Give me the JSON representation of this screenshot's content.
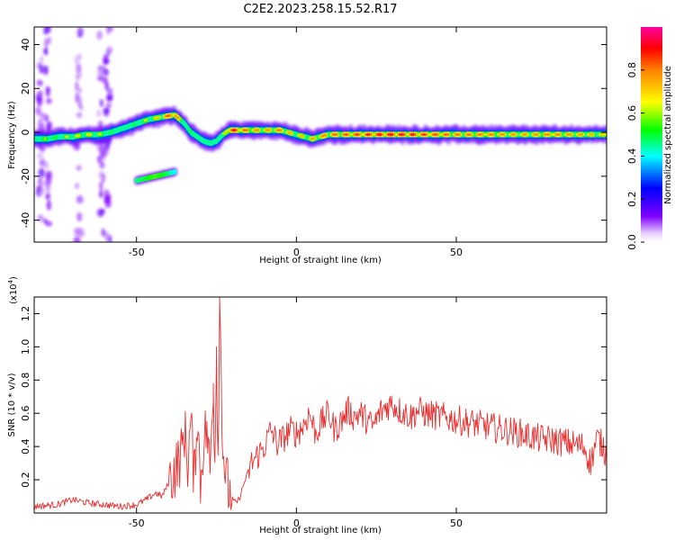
{
  "figure_title": "C2E2.2023.258.15.52.R17",
  "colors": {
    "snr_line": "#e83030",
    "axis": "#000000"
  },
  "chart_data": [
    {
      "type": "heatmap",
      "title": "C2E2.2023.258.15.52.R17",
      "xlabel": "Height of straight line (km)",
      "ylabel": "Frequency (Hz)",
      "xlim": [
        -82,
        97
      ],
      "ylim": [
        -50,
        48
      ],
      "xticks": [
        -50,
        0,
        50
      ],
      "yticks": [
        -40,
        -20,
        0,
        20,
        40
      ],
      "grid": false,
      "colormap": "rainbow",
      "colorbar": {
        "label": "Normalized spectral amplitude",
        "range": [
          0,
          1
        ],
        "ticks": [
          "0.0",
          "0.2",
          "0.4",
          "0.6",
          "0.8"
        ]
      },
      "ridge": {
        "x": [
          -82,
          -78,
          -74,
          -70,
          -66,
          -62,
          -58,
          -54,
          -50,
          -46,
          -42,
          -38,
          -35,
          -33,
          -31,
          -29,
          -27,
          -25,
          -23,
          -21,
          -18,
          -15,
          -10,
          -5,
          0,
          5,
          10,
          20,
          30,
          40,
          50,
          60,
          70,
          80,
          90,
          97
        ],
        "y": [
          -3,
          -3,
          -2,
          -2,
          -1,
          -1,
          0,
          2,
          4,
          6,
          7,
          8,
          4,
          0,
          -2,
          -4,
          -5,
          -4,
          -1,
          1,
          1,
          1,
          1,
          1,
          -1,
          -3,
          -1,
          -1,
          -1,
          -1,
          -1,
          -1,
          -1,
          -1,
          -1,
          -1
        ],
        "amplitude": [
          0.5,
          0.6,
          0.55,
          0.6,
          0.65,
          0.6,
          0.55,
          0.5,
          0.55,
          0.6,
          0.7,
          0.85,
          0.5,
          0.55,
          0.5,
          0.45,
          0.5,
          0.45,
          0.5,
          0.85,
          0.8,
          0.75,
          0.7,
          0.75,
          0.65,
          0.7,
          0.75,
          0.8,
          0.85,
          0.8,
          0.75,
          0.75,
          0.7,
          0.75,
          0.7,
          0.65
        ]
      },
      "secondary_branch": {
        "x": [
          -50,
          -47,
          -44,
          -41,
          -38
        ],
        "y": [
          -22,
          -21,
          -20,
          -19,
          -18
        ],
        "amplitude": [
          0.45,
          0.5,
          0.55,
          0.5,
          0.4
        ]
      }
    },
    {
      "type": "line",
      "xlabel": "Height of straight line (km)",
      "ylabel": "SNR (10 * v/v)",
      "y_multiplier": "(x10^4)",
      "xlim": [
        -82,
        97
      ],
      "ylim": [
        0,
        1.3
      ],
      "xticks": [
        -50,
        0,
        50
      ],
      "yticks": [
        "0.2",
        "0.4",
        "0.6",
        "0.8",
        "1.0",
        "1.2"
      ],
      "grid": false,
      "series": [
        {
          "color": "#e83030",
          "x": [
            -82,
            -75,
            -70,
            -65,
            -60,
            -55,
            -50,
            -47,
            -44,
            -42,
            -40,
            -38,
            -36,
            -35,
            -34,
            -33,
            -32,
            -31,
            -30,
            -29,
            -28,
            -27,
            -26,
            -25.5,
            -25,
            -24.5,
            -24,
            -23,
            -22,
            -21,
            -20,
            -19,
            -18,
            -16,
            -14,
            -12,
            -10,
            -8,
            -6,
            -4,
            -2,
            0,
            2,
            4,
            6,
            8,
            10,
            12,
            14,
            16,
            18,
            20,
            22,
            24,
            26,
            28,
            30,
            32,
            34,
            36,
            38,
            40,
            45,
            50,
            55,
            60,
            65,
            70,
            75,
            80,
            85,
            90,
            92,
            94,
            96,
            97
          ],
          "y": [
            0.04,
            0.05,
            0.08,
            0.06,
            0.05,
            0.04,
            0.05,
            0.08,
            0.12,
            0.1,
            0.18,
            0.26,
            0.35,
            0.5,
            0.3,
            0.55,
            0.2,
            0.6,
            0.18,
            0.45,
            0.5,
            0.25,
            0.78,
            0.3,
            1.0,
            0.35,
            1.28,
            0.4,
            0.2,
            0.12,
            0.08,
            0.06,
            0.08,
            0.2,
            0.3,
            0.35,
            0.4,
            0.5,
            0.42,
            0.45,
            0.5,
            0.48,
            0.52,
            0.6,
            0.48,
            0.55,
            0.6,
            0.5,
            0.55,
            0.62,
            0.58,
            0.6,
            0.56,
            0.52,
            0.6,
            0.64,
            0.66,
            0.62,
            0.6,
            0.58,
            0.62,
            0.6,
            0.58,
            0.56,
            0.54,
            0.52,
            0.5,
            0.48,
            0.45,
            0.44,
            0.42,
            0.4,
            0.3,
            0.45,
            0.4,
            0.35
          ]
        }
      ]
    }
  ]
}
